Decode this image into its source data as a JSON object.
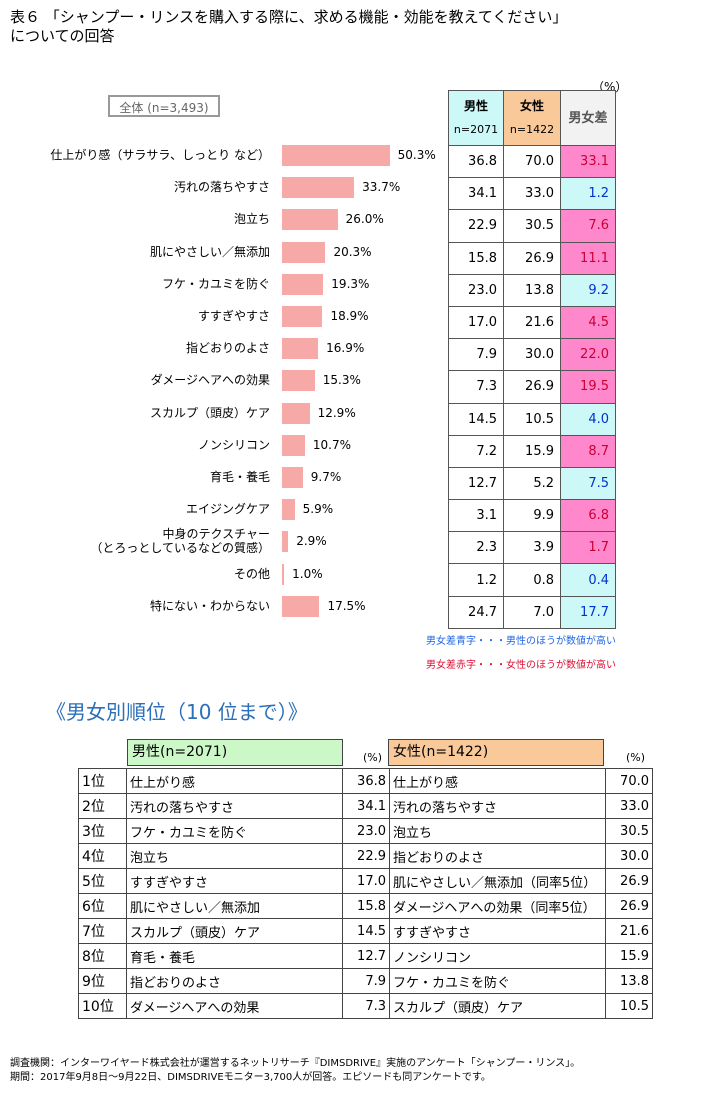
{
  "title": "表６ 「シャンプー・リンスを購入する際に、求める機能・効能を教えてください」\nについての回答",
  "unit": "（%）",
  "total_label": "全体 (n=3,493)",
  "chart_data": {
    "type": "bar",
    "categories": [
      "仕上がり感（サラサラ、しっとり など）",
      "汚れの落ちやすさ",
      "泡立ち",
      "肌にやさしい／無添加",
      "フケ・カユミを防ぐ",
      "すすぎやすさ",
      "指どおりのよさ",
      "ダメージヘアへの効果",
      "スカルプ（頭皮）ケア",
      "ノンシリコン",
      "育毛・養毛",
      "エイジングケア",
      "中身のテクスチャー\n（とろっとしているなどの質感）",
      "その他",
      "特にない・わからない"
    ],
    "values": [
      50.3,
      33.7,
      26.0,
      20.3,
      19.3,
      18.9,
      16.9,
      15.3,
      12.9,
      10.7,
      9.7,
      5.9,
      2.9,
      1.0,
      17.5
    ],
    "value_labels": [
      "50.3%",
      "33.7%",
      "26.0%",
      "20.3%",
      "19.3%",
      "18.9%",
      "16.9%",
      "15.3%",
      "12.9%",
      "10.7%",
      "9.7%",
      "5.9%",
      "2.9%",
      "1.0%",
      "17.5%"
    ],
    "bar_color": "#f7a9a8"
  },
  "diff_table": {
    "male_header": "男性",
    "male_n": "n=2071",
    "female_header": "女性",
    "female_n": "n=1422",
    "diff_header": "男女差",
    "rows": [
      {
        "male": "36.8",
        "female": "70.0",
        "diff": "33.1",
        "sign": "pos"
      },
      {
        "male": "34.1",
        "female": "33.0",
        "diff": "1.2",
        "sign": "neg"
      },
      {
        "male": "22.9",
        "female": "30.5",
        "diff": "7.6",
        "sign": "pos"
      },
      {
        "male": "15.8",
        "female": "26.9",
        "diff": "11.1",
        "sign": "pos"
      },
      {
        "male": "23.0",
        "female": "13.8",
        "diff": "9.2",
        "sign": "neg"
      },
      {
        "male": "17.0",
        "female": "21.6",
        "diff": "4.5",
        "sign": "pos"
      },
      {
        "male": "7.9",
        "female": "30.0",
        "diff": "22.0",
        "sign": "pos"
      },
      {
        "male": "7.3",
        "female": "26.9",
        "diff": "19.5",
        "sign": "pos"
      },
      {
        "male": "14.5",
        "female": "10.5",
        "diff": "4.0",
        "sign": "neg"
      },
      {
        "male": "7.2",
        "female": "15.9",
        "diff": "8.7",
        "sign": "pos"
      },
      {
        "male": "12.7",
        "female": "5.2",
        "diff": "7.5",
        "sign": "neg"
      },
      {
        "male": "3.1",
        "female": "9.9",
        "diff": "6.8",
        "sign": "pos"
      },
      {
        "male": "2.3",
        "female": "3.9",
        "diff": "1.7",
        "sign": "pos"
      },
      {
        "male": "1.2",
        "female": "0.8",
        "diff": "0.4",
        "sign": "neg"
      },
      {
        "male": "24.7",
        "female": "7.0",
        "diff": "17.7",
        "sign": "neg"
      }
    ],
    "note_blue": "男女差青字・・・男性のほうが数値が高い",
    "note_red": "男女差赤字・・・女性のほうが数値が高い"
  },
  "ranking": {
    "title": "《男女別順位（10 位まで）》",
    "male_header": "男性(n=2071)",
    "female_header": "女性(n=1422)",
    "unit": "(%)",
    "rows": [
      {
        "rank": "1位",
        "m": "仕上がり感",
        "mv": "36.8",
        "f": "仕上がり感",
        "fv": "70.0"
      },
      {
        "rank": "2位",
        "m": "汚れの落ちやすさ",
        "mv": "34.1",
        "f": "汚れの落ちやすさ",
        "fv": "33.0"
      },
      {
        "rank": "3位",
        "m": "フケ・カユミを防ぐ",
        "mv": "23.0",
        "f": "泡立ち",
        "fv": "30.5"
      },
      {
        "rank": "4位",
        "m": "泡立ち",
        "mv": "22.9",
        "f": "指どおりのよさ",
        "fv": "30.0"
      },
      {
        "rank": "5位",
        "m": "すすぎやすさ",
        "mv": "17.0",
        "f": "肌にやさしい／無添加（同率5位）",
        "fv": "26.9"
      },
      {
        "rank": "6位",
        "m": "肌にやさしい／無添加",
        "mv": "15.8",
        "f": "ダメージヘアへの効果（同率5位）",
        "fv": "26.9"
      },
      {
        "rank": "7位",
        "m": "スカルプ（頭皮）ケア",
        "mv": "14.5",
        "f": "すすぎやすさ",
        "fv": "21.6"
      },
      {
        "rank": "8位",
        "m": "育毛・養毛",
        "mv": "12.7",
        "f": "ノンシリコン",
        "fv": "15.9"
      },
      {
        "rank": "9位",
        "m": "指どおりのよさ",
        "mv": "7.9",
        "f": "フケ・カユミを防ぐ",
        "fv": "13.8"
      },
      {
        "rank": "10位",
        "m": "ダメージヘアへの効果",
        "mv": "7.3",
        "f": "スカルプ（頭皮）ケア",
        "fv": "10.5"
      }
    ]
  },
  "footer": "調査機関：インターワイヤード株式会社が運営するネットリサーチ『DIMSDRIVE』実施のアンケート「シャンプー・リンス」。\n期間：2017年9月8日～9月22日、DIMSDRIVEモニター3,700人が回答。エピソードも同アンケートです。"
}
